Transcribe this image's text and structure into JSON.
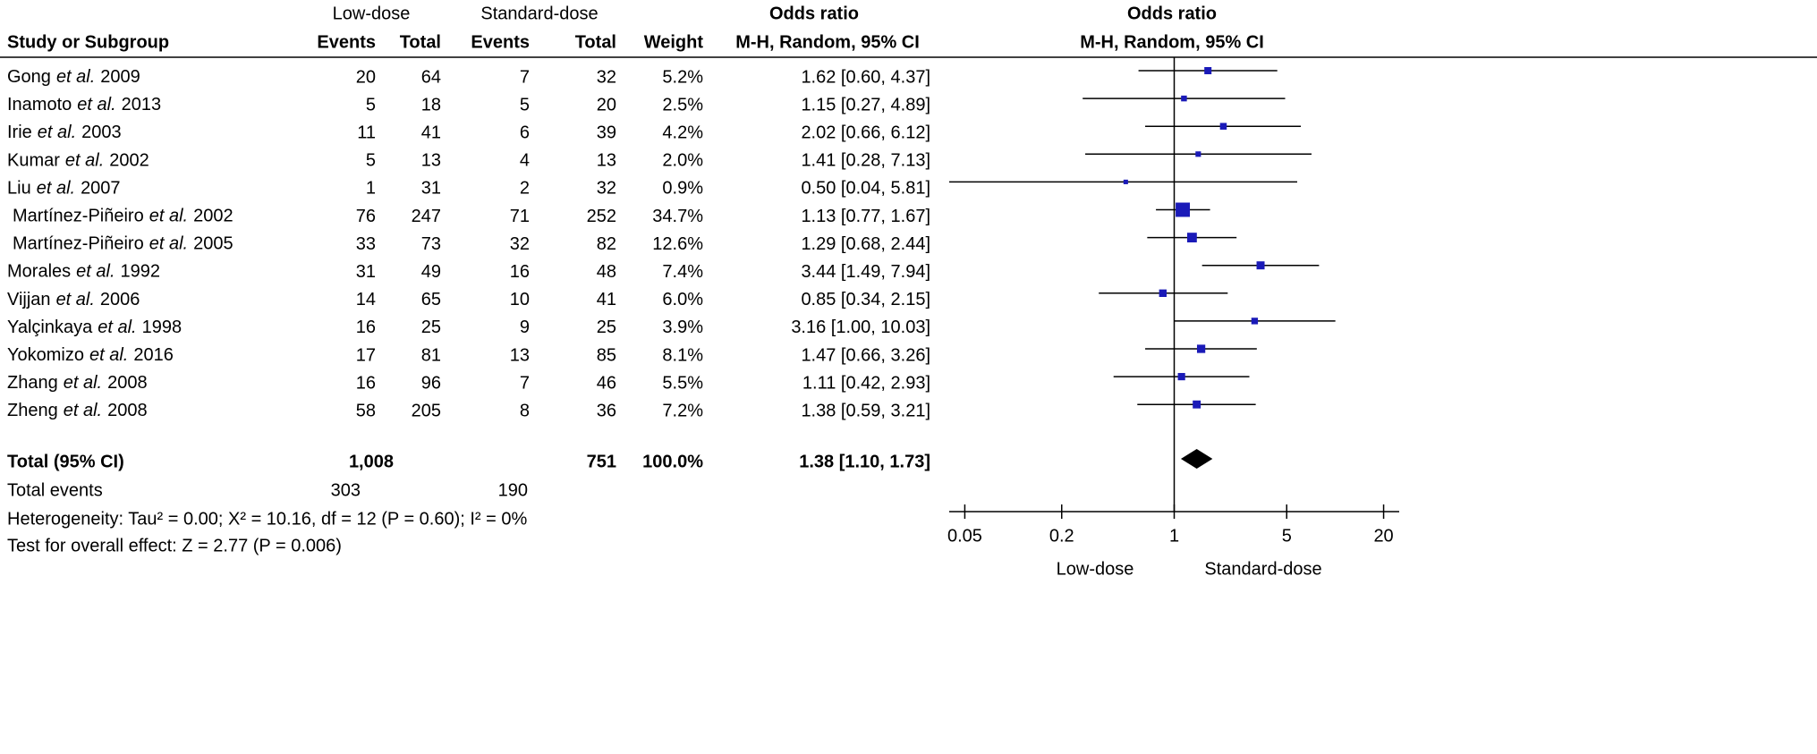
{
  "table": {
    "group_low": "Low-dose",
    "group_std": "Standard-dose",
    "or_title": "Odds ratio",
    "or_subtitle": "M-H, Random, 95% CI",
    "columns": [
      "Study or Subgroup",
      "Events",
      "Total",
      "Events",
      "Total",
      "Weight"
    ],
    "rows": [
      {
        "author": "Gong",
        "etal": "et al.",
        "year": "2009",
        "events_low": 20,
        "total_low": 64,
        "events_std": 7,
        "total_std": 32
      },
      {
        "author": "Inamoto",
        "etal": "et al.",
        "year": "2013",
        "events_low": 5,
        "total_low": 18,
        "events_std": 5,
        "total_std": 20
      },
      {
        "author": "Irie",
        "etal": "et al.",
        "year": "2003",
        "events_low": 11,
        "total_low": 41,
        "events_std": 6,
        "total_std": 39
      },
      {
        "author": "Kumar",
        "etal": "et al.",
        "year": "2002",
        "events_low": 5,
        "total_low": 13,
        "events_std": 4,
        "total_std": 13
      },
      {
        "author": "Liu",
        "etal": "et al.",
        "year": "2007",
        "events_low": 1,
        "total_low": 31,
        "events_std": 2,
        "total_std": 32
      },
      {
        "author": "Martínez-Piñeiro",
        "etal": "et al.",
        "year": "2002",
        "events_low": 76,
        "total_low": 247,
        "events_std": 71,
        "total_std": 252
      },
      {
        "author": "Martínez-Piñeiro",
        "etal": "et al.",
        "year": "2005",
        "events_low": 33,
        "total_low": 73,
        "events_std": 32,
        "total_std": 82
      },
      {
        "author": "Morales",
        "etal": "et al.",
        "year": "1992",
        "events_low": 31,
        "total_low": 49,
        "events_std": 16,
        "total_std": 48
      },
      {
        "author": "Vijjan",
        "etal": "et al.",
        "year": "2006",
        "events_low": 14,
        "total_low": 65,
        "events_std": 10,
        "total_std": 41
      },
      {
        "author": "Yalçinkaya",
        "etal": "et al.",
        "year": "1998",
        "events_low": 16,
        "total_low": 25,
        "events_std": 9,
        "total_std": 25
      },
      {
        "author": "Yokomizo",
        "etal": "et al.",
        "year": "2016",
        "events_low": 17,
        "total_low": 81,
        "events_std": 13,
        "total_std": 85
      },
      {
        "author": "Zhang",
        "etal": "et al.",
        "year": "2008",
        "events_low": 16,
        "total_low": 96,
        "events_std": 7,
        "total_std": 46
      },
      {
        "author": "Zheng",
        "etal": "et al.",
        "year": "2008",
        "events_low": 58,
        "total_low": 205,
        "events_std": 8,
        "total_std": 36
      }
    ],
    "total": {
      "label": "Total (95% CI)",
      "total_low": "1,008",
      "total_std": 751,
      "weight": "100.0%"
    },
    "total_events": {
      "label": "Total events",
      "low": 303,
      "std": 190
    },
    "heterogeneity": "Heterogeneity: Tau² = 0.00;   Χ² = 10.16, df = 12 (P = 0.60); I² = 0%",
    "overall_effect": "Test for overall effect: Z = 2.77 (P = 0.006)"
  },
  "chart_data": {
    "type": "forest",
    "title": "Odds ratio",
    "subtitle": "M-H, Random, 95% CI",
    "values": [
      1.62,
      1.15,
      2.02,
      1.41,
      0.5,
      1.13,
      1.29,
      3.44,
      0.85,
      3.16,
      1.47,
      1.11,
      1.38
    ],
    "lower": [
      0.6,
      0.27,
      0.66,
      0.28,
      0.04,
      0.77,
      0.68,
      1.49,
      0.34,
      1.0,
      0.66,
      0.42,
      0.59
    ],
    "upper": [
      4.37,
      4.89,
      6.12,
      7.13,
      5.81,
      1.67,
      2.44,
      7.94,
      2.15,
      10.03,
      3.26,
      2.93,
      3.21
    ],
    "value_labels": [
      "1.62 [0.60, 4.37]",
      "1.15 [0.27, 4.89]",
      "2.02 [0.66, 6.12]",
      "1.41 [0.28, 7.13]",
      "0.50 [0.04, 5.81]",
      "1.13 [0.77, 1.67]",
      "1.29 [0.68, 2.44]",
      "3.44 [1.49, 7.94]",
      "0.85 [0.34, 2.15]",
      "3.16 [1.00, 10.03]",
      "1.47 [0.66, 3.26]",
      "1.11 [0.42, 2.93]",
      "1.38 [0.59, 3.21]"
    ],
    "weights": [
      5.2,
      2.5,
      4.2,
      2.0,
      0.9,
      34.7,
      12.6,
      7.4,
      6.0,
      3.9,
      8.1,
      5.5,
      7.2
    ],
    "weight_labels": [
      "5.2%",
      "2.5%",
      "4.2%",
      "2.0%",
      "0.9%",
      "34.7%",
      "12.6%",
      "7.4%",
      "6.0%",
      "3.9%",
      "8.1%",
      "5.5%",
      "7.2%"
    ],
    "total": {
      "value": 1.38,
      "lower": 1.1,
      "upper": 1.73,
      "label": "1.38 [1.10, 1.73]"
    },
    "color": "#1a1ab8",
    "xscale": "log",
    "xlim": [
      0.04,
      25
    ],
    "xticks": [
      0.05,
      0.2,
      1,
      5,
      20
    ],
    "reference": 1,
    "x_left_label": "Low-dose",
    "x_right_label": "Standard-dose"
  }
}
